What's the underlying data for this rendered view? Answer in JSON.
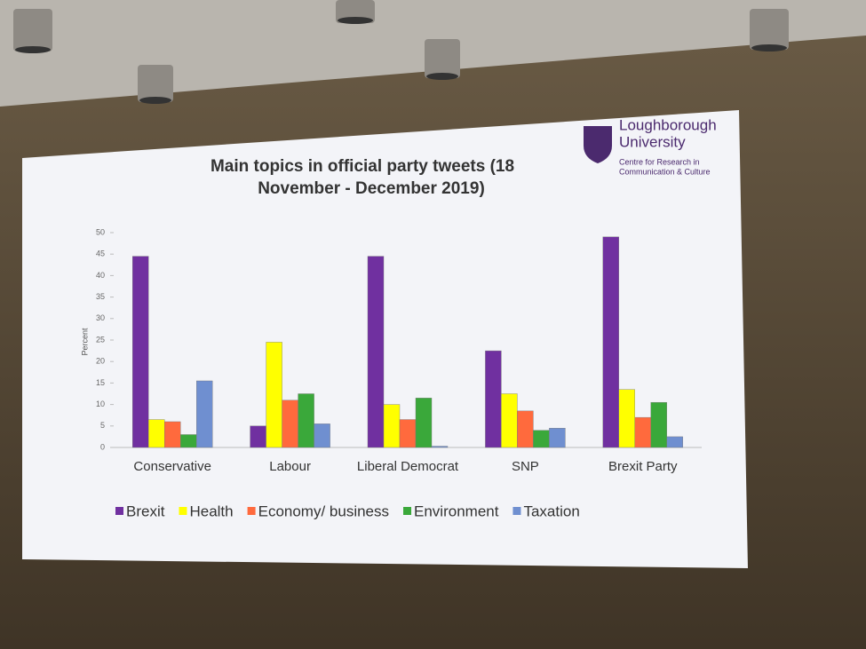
{
  "chart_data": {
    "type": "bar",
    "title": "Main topics in official party tweets (18 November - December 2019)",
    "ylabel": "Percent",
    "categories": [
      "Conservative",
      "Labour",
      "Liberal Democrat",
      "SNP",
      "Brexit Party"
    ],
    "series": [
      {
        "name": "Brexit",
        "color": "#7030a0",
        "values": [
          44.5,
          5,
          44.5,
          22.5,
          49
        ]
      },
      {
        "name": "Health",
        "color": "#ffff00",
        "values": [
          6.5,
          24.5,
          10,
          12.5,
          13.5
        ]
      },
      {
        "name": "Economy/ business",
        "color": "#ff6a3d",
        "values": [
          6,
          11,
          6.5,
          8.5,
          7
        ]
      },
      {
        "name": "Environment",
        "color": "#3aa83a",
        "values": [
          3,
          12.5,
          11.5,
          4,
          10.5
        ]
      },
      {
        "name": "Taxation",
        "color": "#6f8fd0",
        "values": [
          15.5,
          5.5,
          0.3,
          4.5,
          2.5
        ]
      }
    ],
    "ylim": [
      0,
      50
    ],
    "yticks": [
      0,
      5,
      10,
      15,
      20,
      25,
      30,
      35,
      40,
      45,
      50
    ],
    "grid": false
  },
  "logo": {
    "name": "Loughborough",
    "name2": "University",
    "unit": "Centre for Research in",
    "unit2": "Communication & Culture"
  }
}
